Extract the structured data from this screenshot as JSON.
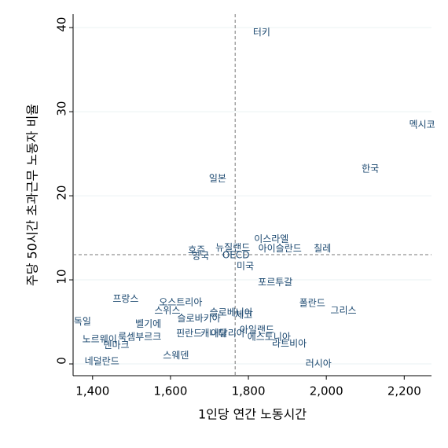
{
  "chart_data": {
    "type": "scatter",
    "x_label": "1인당 연간 노동시간",
    "y_label": "주당 50시간 초과근무 노동자 비율",
    "labels": [
      "터키",
      "멕시코",
      "한국",
      "일본",
      "이스라엘",
      "뉴질랜드",
      "아이슬란드",
      "칠레",
      "호주",
      "영국",
      "OECD",
      "미국",
      "포르투갈",
      "프랑스",
      "오스트리아",
      "폴란드",
      "스위스",
      "슬로베니아",
      "그리스",
      "체코",
      "슬로바키아",
      "독일",
      "벨기에",
      "아일랜드",
      "핀란드",
      "캐나다",
      "이탈리아",
      "에스토니아",
      "노르웨이",
      "룩셈부르크",
      "덴마크",
      "라트비아",
      "스웨덴",
      "러시아",
      "네덜란드"
    ],
    "x": [
      1834,
      2246,
      2113,
      1721,
      1859,
      1760,
      1881,
      1990,
      1667,
      1677,
      1768,
      1792,
      1869,
      1485,
      1626,
      1964,
      1592,
      1756,
      2044,
      1788,
      1673,
      1374,
      1543,
      1822,
      1648,
      1711,
      1747,
      1853,
      1418,
      1521,
      1461,
      1905,
      1614,
      1980,
      1424
    ],
    "values": [
      39.4,
      28.4,
      23.2,
      22.0,
      14.8,
      13.8,
      13.7,
      13.7,
      13.5,
      12.8,
      12.9,
      11.6,
      9.7,
      7.7,
      7.3,
      7.2,
      6.3,
      6.1,
      6.3,
      5.8,
      5.4,
      5.0,
      4.7,
      4.0,
      3.6,
      3.6,
      3.6,
      3.2,
      2.9,
      3.2,
      2.2,
      2.4,
      1.0,
      0.0,
      0.3
    ],
    "color": "#1a476f",
    "reference_x": 1766,
    "reference_y": 13,
    "xlim": [
      1350,
      2270
    ],
    "xticks": [
      {
        "value": 1400,
        "label": "1,400"
      },
      {
        "value": 1600,
        "label": "1,600"
      },
      {
        "value": 1800,
        "label": "1,800"
      },
      {
        "value": 2000,
        "label": "2,000"
      },
      {
        "value": 2200,
        "label": "2,200"
      }
    ],
    "ylim": [
      -1.4,
      41.6
    ],
    "yticks": [
      0,
      10,
      20,
      30,
      40
    ],
    "grid": true
  }
}
